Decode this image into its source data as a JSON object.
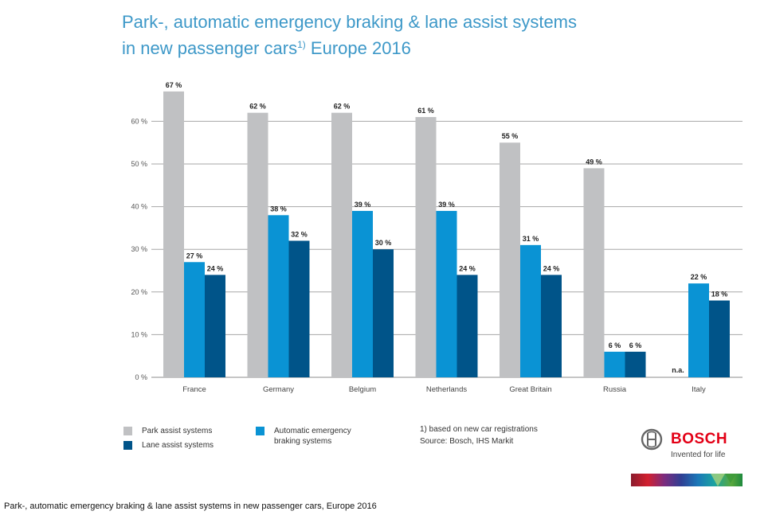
{
  "title": {
    "line1": "Park-, automatic emergency braking & lane assist systems",
    "line2_pre": "in new passenger cars",
    "line2_sup": "1)",
    "line2_post": " Europe 2016"
  },
  "chart_data": {
    "type": "bar",
    "categories": [
      "France",
      "Germany",
      "Belgium",
      "Netherlands",
      "Great Britain",
      "Russia",
      "Italy"
    ],
    "series": [
      {
        "name": "Park assist systems",
        "color": "#c0c1c3",
        "values": [
          67,
          62,
          62,
          61,
          55,
          49,
          null
        ],
        "labels": [
          "67 %",
          "62 %",
          "62 %",
          "61 %",
          "55 %",
          "49 %",
          "n.a."
        ]
      },
      {
        "name": "Automatic emergency braking systems",
        "color": "#0a93d4",
        "values": [
          27,
          38,
          39,
          39,
          31,
          6,
          22
        ],
        "labels": [
          "27 %",
          "38 %",
          "39 %",
          "39 %",
          "31 %",
          "6 %",
          "22 %"
        ]
      },
      {
        "name": "Lane assist systems",
        "color": "#005489",
        "values": [
          24,
          32,
          30,
          24,
          24,
          6,
          18
        ],
        "labels": [
          "24 %",
          "32 %",
          "30 %",
          "24 %",
          "24 %",
          "6 %",
          "18 %"
        ]
      }
    ],
    "yticks": [
      0,
      10,
      20,
      30,
      40,
      50,
      60
    ],
    "ytick_labels": [
      "0 %",
      "10 %",
      "20 %",
      "30 %",
      "40 %",
      "50 %",
      "60 %"
    ],
    "ylim": [
      0,
      70
    ],
    "grid": true,
    "legend_position": "bottom-left"
  },
  "legend": {
    "park": "Park assist systems",
    "lane": "Lane assist systems",
    "aeb_line1": "Automatic emergency",
    "aeb_line2": "braking systems",
    "colors": {
      "park": "#c0c1c3",
      "aeb": "#0a93d4",
      "lane": "#005489"
    }
  },
  "footnote": {
    "line1": "1) based on new car registrations",
    "line2": "Source: Bosch, IHS Markit"
  },
  "brand": {
    "name": "BOSCH",
    "tagline": "Invented for life",
    "icon": "bosch-armature-icon"
  },
  "caption": "Park-, automatic emergency braking & lane assist systems in new passenger cars, Europe 2016"
}
